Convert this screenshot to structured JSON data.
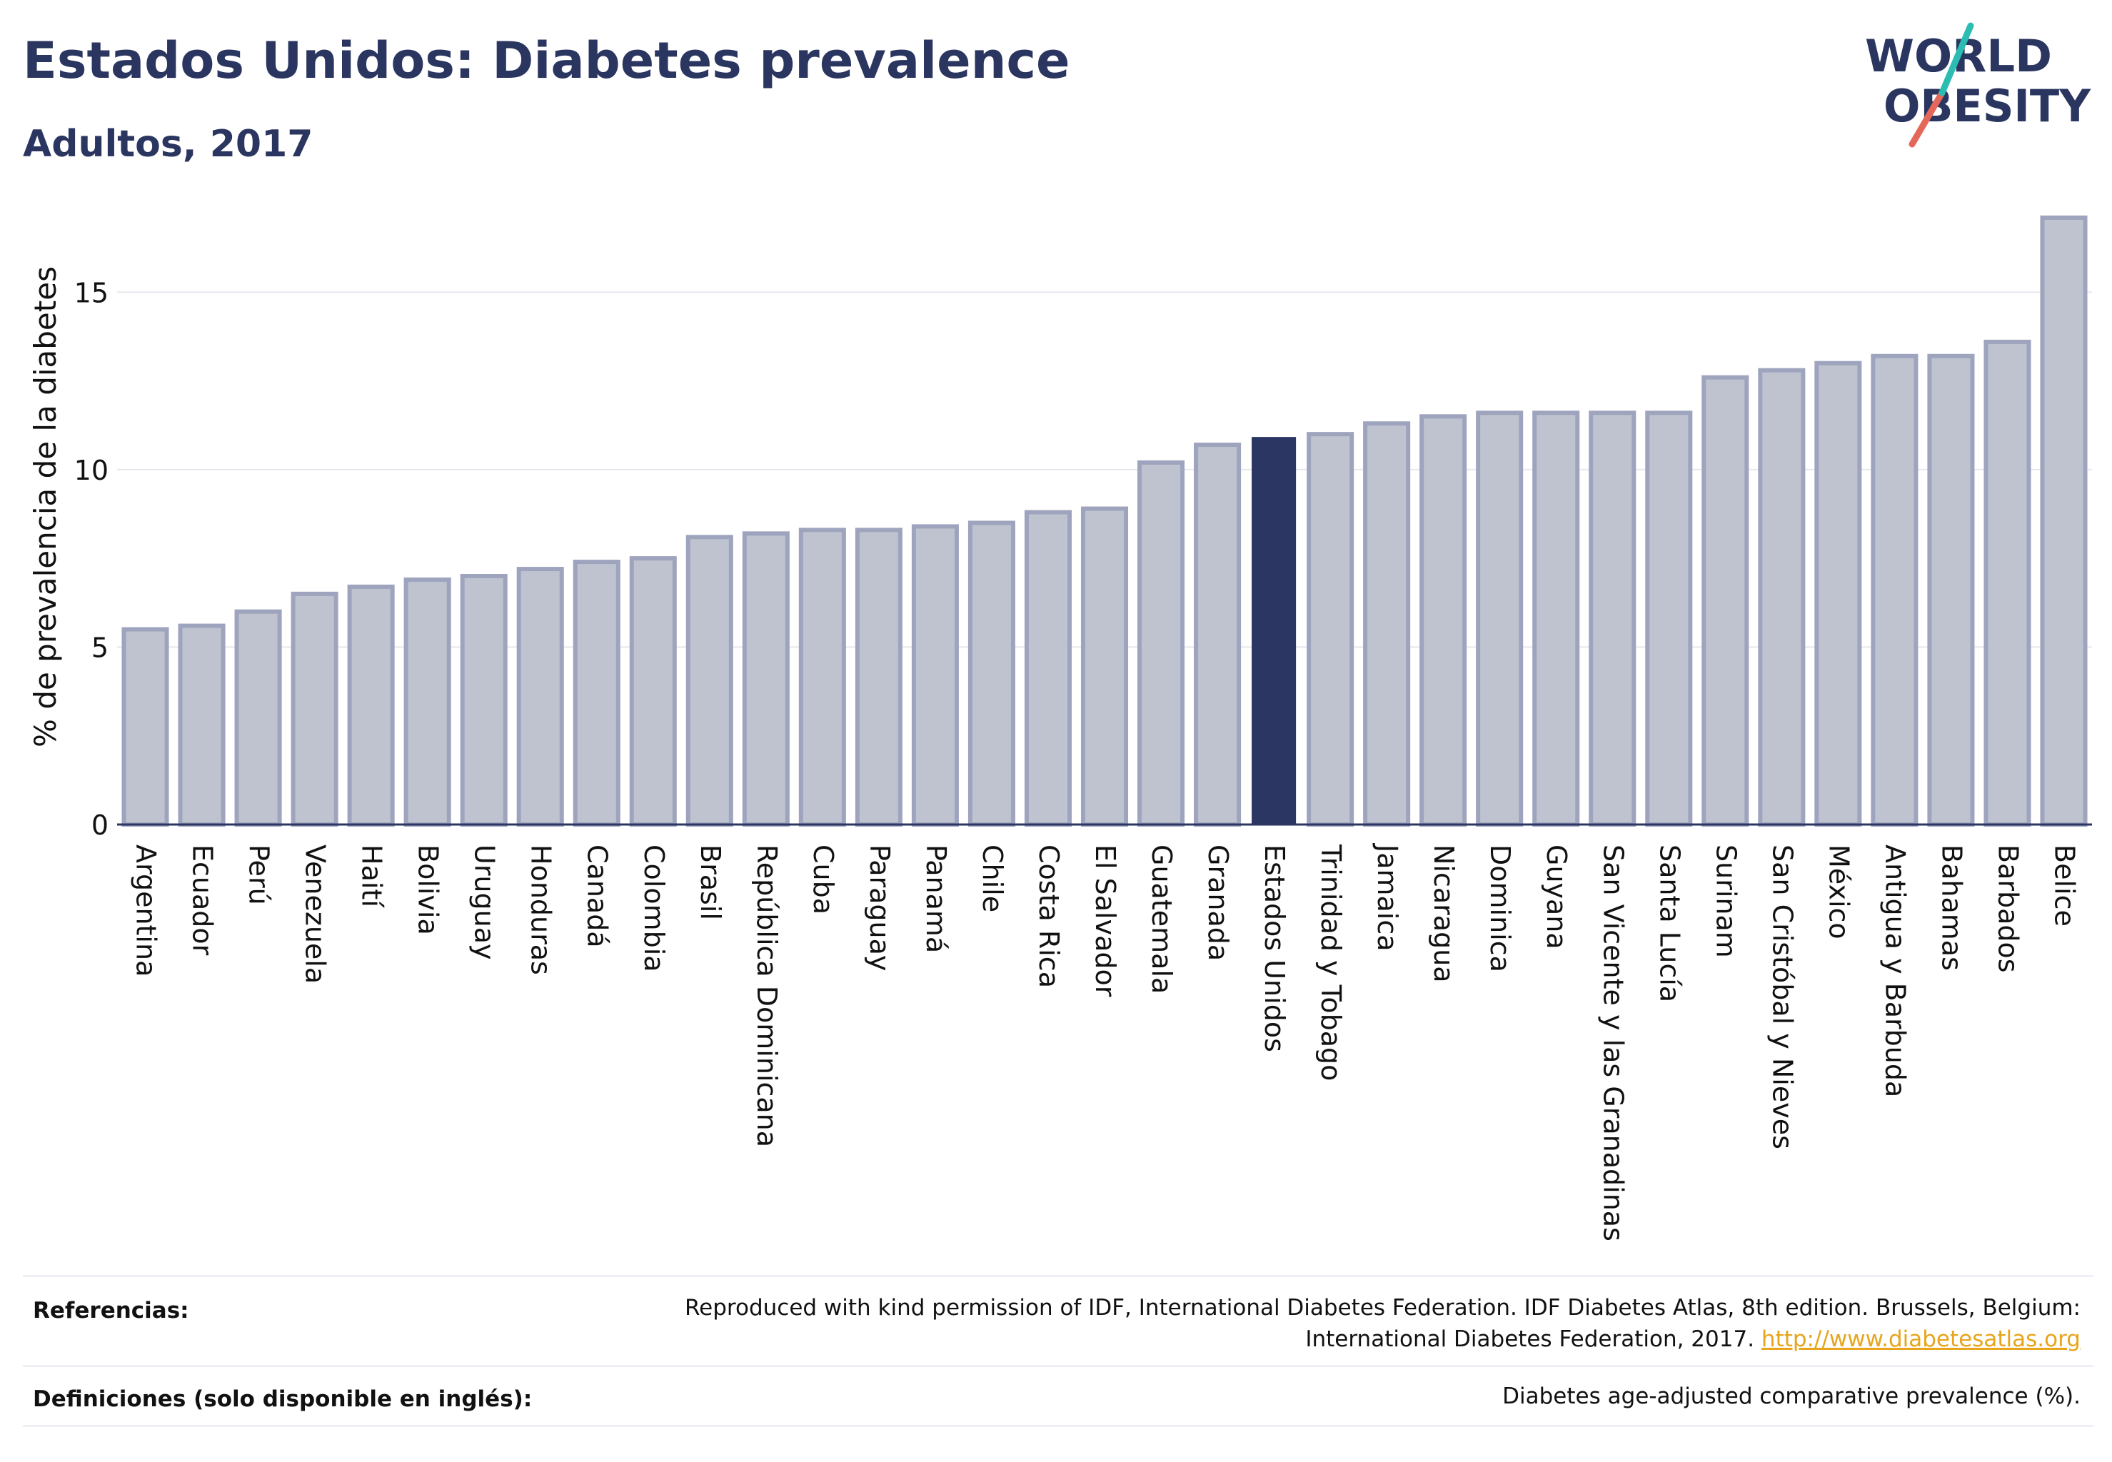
{
  "header": {
    "title": "Estados Unidos: Diabetes prevalence",
    "subtitle": "Adultos, 2017"
  },
  "logo": {
    "line1": "WORLD",
    "line2": "OBESITY"
  },
  "colors": {
    "title": "#2a3560",
    "bar_fill": "#bfc3d0",
    "bar_stroke": "#9ea4bd",
    "highlight": "#2b3662",
    "grid": "#e6e8ee",
    "link": "#e7a51b",
    "logo_teal": "#2bbcb2",
    "logo_red": "#e5675a"
  },
  "chart_data": {
    "type": "bar",
    "ylabel": "% de prevalencia de la diabetes",
    "xlabel": "",
    "ylim": [
      0,
      17.5
    ],
    "yticks": [
      0,
      5,
      10,
      15
    ],
    "grid": true,
    "highlight": "Estados Unidos",
    "categories": [
      "Argentina",
      "Ecuador",
      "Perú",
      "Venezuela",
      "Haití",
      "Bolivia",
      "Uruguay",
      "Honduras",
      "Canadá",
      "Colombia",
      "Brasil",
      "República Dominicana",
      "Cuba",
      "Paraguay",
      "Panamá",
      "Chile",
      "Costa Rica",
      "El Salvador",
      "Guatemala",
      "Granada",
      "Estados Unidos",
      "Trinidad y Tobago",
      "Jamaica",
      "Nicaragua",
      "Dominica",
      "Guyana",
      "San Vicente y las Granadinas",
      "Santa Lucía",
      "Surinam",
      "San Cristóbal y Nieves",
      "México",
      "Antigua y Barbuda",
      "Bahamas",
      "Barbados",
      "Belice"
    ],
    "values": [
      5.5,
      5.6,
      6.0,
      6.5,
      6.7,
      6.9,
      7.0,
      7.2,
      7.4,
      7.5,
      8.1,
      8.2,
      8.3,
      8.3,
      8.4,
      8.5,
      8.8,
      8.9,
      10.2,
      10.7,
      10.9,
      11.0,
      11.3,
      11.5,
      11.6,
      11.6,
      11.6,
      11.6,
      12.6,
      12.8,
      13.0,
      13.2,
      13.2,
      13.6,
      17.1
    ]
  },
  "footer": {
    "references_label": "Referencias:",
    "references_text_1": "Reproduced with kind permission of IDF, International Diabetes Federation. IDF Diabetes Atlas, 8th edition. Brussels, Belgium:",
    "references_text_2": "International Diabetes Federation, 2017.",
    "references_link": "http://www.diabetesatlas.org",
    "definitions_label": "Definiciones (solo disponible en inglés):",
    "definitions_text": "Diabetes age-adjusted comparative prevalence (%)."
  }
}
